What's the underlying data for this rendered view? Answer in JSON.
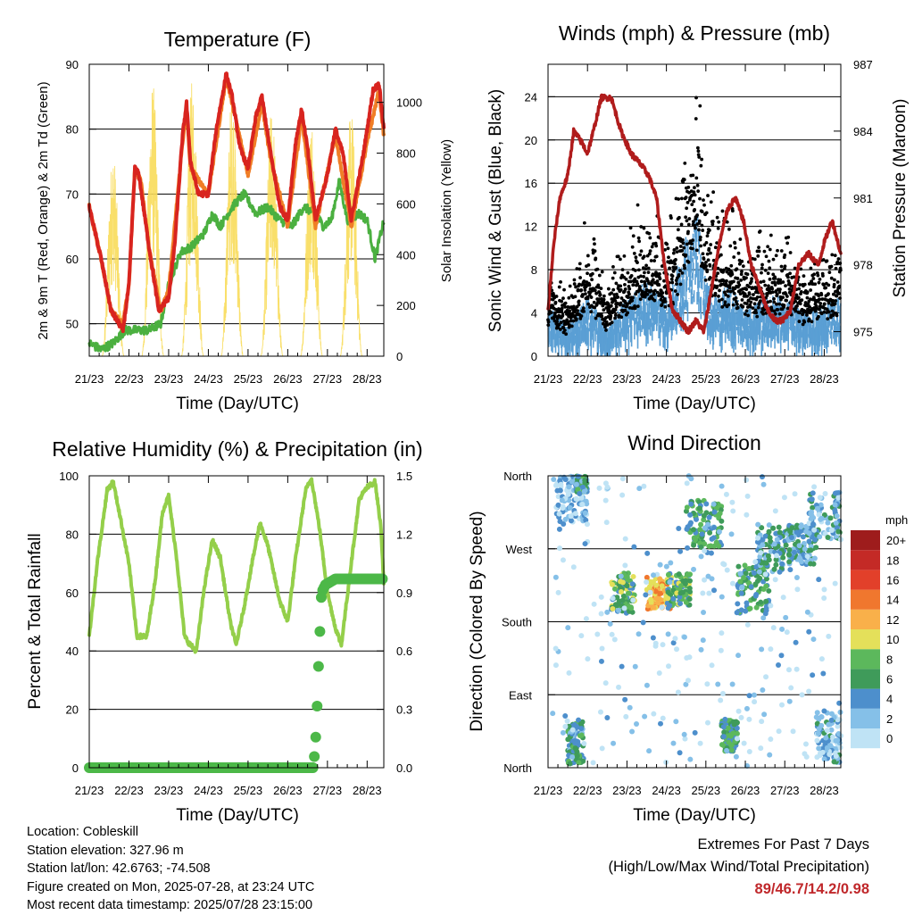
{
  "x_ticks": [
    "21/23",
    "22/23",
    "23/23",
    "24/23",
    "25/23",
    "26/23",
    "27/23",
    "28/23"
  ],
  "x_label": "Time (Day/UTC)",
  "colors": {
    "temp_red": "#d8241f",
    "temp_orange": "#f07e26",
    "dewpoint_green": "#4bb040",
    "solar_yellow": "#f8dc5a",
    "wind_blue": "#5a9fd4",
    "gust_black": "#000000",
    "pressure_maroon": "#b01c1c",
    "rh_green": "#94cf4a",
    "precip_green": "#4cb848"
  },
  "chart_data": [
    {
      "id": "temperature",
      "type": "line",
      "title": "Temperature (F)",
      "xlabel": "Time (Day/UTC)",
      "ylabel": "2m & 9m T (Red, Orange) & 2m Td (Green)",
      "y2label": "Solar Insolation (Yellow)",
      "ylim": [
        45,
        90
      ],
      "yticks": [
        50,
        60,
        70,
        80,
        90
      ],
      "y2lim": [
        0,
        1150
      ],
      "y2ticks": [
        0,
        200,
        400,
        600,
        800,
        1000
      ],
      "grid": true,
      "series": [
        {
          "key": "t2m",
          "values": [
            [
              0,
              68
            ],
            [
              0.3,
              60
            ],
            [
              0.55,
              52
            ],
            [
              0.85,
              49
            ],
            [
              1.0,
              56
            ],
            [
              1.1,
              68
            ],
            [
              1.15,
              74
            ],
            [
              1.25,
              73
            ],
            [
              1.5,
              62
            ],
            [
              1.75,
              52
            ],
            [
              2.0,
              54
            ],
            [
              2.15,
              62
            ],
            [
              2.35,
              79
            ],
            [
              2.45,
              84
            ],
            [
              2.55,
              75
            ],
            [
              2.75,
              70
            ],
            [
              3.0,
              70
            ],
            [
              3.2,
              80
            ],
            [
              3.45,
              88.5
            ],
            [
              3.6,
              85
            ],
            [
              3.8,
              77
            ],
            [
              4.0,
              74
            ],
            [
              4.2,
              82
            ],
            [
              4.35,
              85
            ],
            [
              4.55,
              77
            ],
            [
              4.8,
              68
            ],
            [
              5.0,
              66
            ],
            [
              5.2,
              78
            ],
            [
              5.35,
              83
            ],
            [
              5.5,
              77
            ],
            [
              5.7,
              66
            ],
            [
              6.0,
              73
            ],
            [
              6.2,
              80
            ],
            [
              6.4,
              76
            ],
            [
              6.6,
              66
            ],
            [
              6.9,
              76
            ],
            [
              7.15,
              86
            ],
            [
              7.3,
              87
            ],
            [
              7.42,
              80
            ]
          ]
        },
        {
          "key": "t9m",
          "values": [
            [
              0,
              68
            ],
            [
              0.3,
              60
            ],
            [
              0.55,
              52
            ],
            [
              0.85,
              50
            ],
            [
              1.0,
              56
            ],
            [
              1.15,
              74
            ],
            [
              1.3,
              72
            ],
            [
              1.5,
              62
            ],
            [
              1.8,
              52
            ],
            [
              2.0,
              55
            ],
            [
              2.35,
              78
            ],
            [
              2.45,
              83
            ],
            [
              2.55,
              74
            ],
            [
              3.0,
              70
            ],
            [
              3.45,
              88
            ],
            [
              3.6,
              84
            ],
            [
              4.0,
              73
            ],
            [
              4.35,
              84
            ],
            [
              4.55,
              76
            ],
            [
              5.0,
              65
            ],
            [
              5.35,
              82
            ],
            [
              5.7,
              65
            ],
            [
              6.2,
              79
            ],
            [
              6.6,
              65
            ],
            [
              7.0,
              78
            ],
            [
              7.3,
              86
            ],
            [
              7.42,
              79
            ]
          ]
        },
        {
          "key": "td2m",
          "values": [
            [
              0,
              47
            ],
            [
              0.3,
              46
            ],
            [
              0.6,
              47
            ],
            [
              0.9,
              49
            ],
            [
              1.2,
              49
            ],
            [
              1.5,
              49
            ],
            [
              1.8,
              50
            ],
            [
              2.0,
              56
            ],
            [
              2.3,
              61
            ],
            [
              2.6,
              62
            ],
            [
              2.9,
              64
            ],
            [
              3.1,
              67
            ],
            [
              3.3,
              65
            ],
            [
              3.6,
              68
            ],
            [
              3.9,
              70
            ],
            [
              4.2,
              67
            ],
            [
              4.5,
              68
            ],
            [
              4.8,
              66
            ],
            [
              5.1,
              65
            ],
            [
              5.4,
              68
            ],
            [
              5.7,
              67
            ],
            [
              5.9,
              65
            ],
            [
              6.1,
              66
            ],
            [
              6.3,
              72
            ],
            [
              6.5,
              66
            ],
            [
              6.8,
              67
            ],
            [
              7.0,
              66
            ],
            [
              7.2,
              60
            ],
            [
              7.42,
              66
            ]
          ]
        },
        {
          "key": "solar",
          "peaks": [
            [
              0.6,
              820
            ],
            [
              1.6,
              1090
            ],
            [
              2.6,
              1100
            ],
            [
              3.6,
              1060
            ],
            [
              4.6,
              990
            ],
            [
              5.6,
              960
            ],
            [
              6.6,
              980
            ]
          ]
        }
      ]
    },
    {
      "id": "winds",
      "type": "line",
      "title": "Winds (mph) & Pressure (mb)",
      "xlabel": "Time (Day/UTC)",
      "ylabel": "Sonic Wind & Gust (Blue, Black)",
      "y2label": "Station Pressure (Maroon)",
      "ylim": [
        0,
        27
      ],
      "yticks": [
        0,
        4,
        8,
        12,
        16,
        20,
        24
      ],
      "y2lim": [
        973.9,
        987
      ],
      "y2ticks": [
        975,
        978,
        981,
        984,
        987
      ],
      "grid": true,
      "series": [
        {
          "key": "pressure",
          "values": [
            [
              0,
              976
            ],
            [
              0.15,
              979
            ],
            [
              0.3,
              981
            ],
            [
              0.5,
              982
            ],
            [
              0.65,
              984
            ],
            [
              0.85,
              983.5
            ],
            [
              1.0,
              983
            ],
            [
              1.15,
              984
            ],
            [
              1.35,
              985.5
            ],
            [
              1.6,
              985.5
            ],
            [
              1.85,
              984
            ],
            [
              2.1,
              983
            ],
            [
              2.35,
              982.5
            ],
            [
              2.55,
              982
            ],
            [
              2.75,
              981
            ],
            [
              2.95,
              978
            ],
            [
              3.15,
              976
            ],
            [
              3.35,
              975.5
            ],
            [
              3.55,
              975
            ],
            [
              3.75,
              975.5
            ],
            [
              3.95,
              975
            ],
            [
              4.15,
              977
            ],
            [
              4.35,
              979
            ],
            [
              4.55,
              980.5
            ],
            [
              4.75,
              981
            ],
            [
              4.95,
              980
            ],
            [
              5.15,
              978
            ],
            [
              5.35,
              977
            ],
            [
              5.55,
              976
            ],
            [
              5.75,
              975.5
            ],
            [
              5.95,
              975.5
            ],
            [
              6.15,
              976
            ],
            [
              6.35,
              978
            ],
            [
              6.6,
              978.5
            ],
            [
              6.85,
              978
            ],
            [
              7.0,
              979
            ],
            [
              7.2,
              980
            ],
            [
              7.42,
              978.5
            ]
          ]
        },
        {
          "key": "wind_mean",
          "values": [
            [
              0,
              3.5
            ],
            [
              0.5,
              2
            ],
            [
              1,
              4
            ],
            [
              1.5,
              2
            ],
            [
              2,
              4
            ],
            [
              2.5,
              5
            ],
            [
              3,
              4
            ],
            [
              3.5,
              8
            ],
            [
              3.8,
              10
            ],
            [
              4,
              5
            ],
            [
              4.3,
              4
            ],
            [
              4.6,
              5
            ],
            [
              5,
              3
            ],
            [
              5.5,
              4
            ],
            [
              6,
              4
            ],
            [
              6.5,
              3
            ],
            [
              7,
              3.5
            ],
            [
              7.42,
              4
            ]
          ]
        },
        {
          "key": "gust",
          "values": [
            [
              0,
              6
            ],
            [
              0.5,
              4
            ],
            [
              1,
              9
            ],
            [
              1.5,
              5
            ],
            [
              2,
              8
            ],
            [
              2.5,
              10
            ],
            [
              3,
              8
            ],
            [
              3.5,
              15
            ],
            [
              3.8,
              17
            ],
            [
              4,
              12
            ],
            [
              4.3,
              9
            ],
            [
              4.6,
              10
            ],
            [
              5,
              7
            ],
            [
              5.5,
              8
            ],
            [
              6,
              8
            ],
            [
              6.5,
              6
            ],
            [
              7,
              7
            ],
            [
              7.42,
              8
            ]
          ]
        }
      ]
    },
    {
      "id": "humidity",
      "type": "line",
      "title": "Relative Humidity (%) & Precipitation (in)",
      "xlabel": "Time (Day/UTC)",
      "ylabel": "Percent & Total Rainfall",
      "ylim": [
        0,
        100
      ],
      "yticks": [
        0,
        20,
        40,
        60,
        80,
        100
      ],
      "y2lim": [
        0,
        1.5
      ],
      "y2ticks": [
        "0.0",
        "0.3",
        "0.6",
        "0.9",
        "1.2",
        "1.5"
      ],
      "grid": true,
      "series": [
        {
          "key": "rh",
          "values": [
            [
              0,
              45
            ],
            [
              0.2,
              70
            ],
            [
              0.45,
              95
            ],
            [
              0.6,
              98
            ],
            [
              0.75,
              88
            ],
            [
              1.0,
              70
            ],
            [
              1.2,
              45
            ],
            [
              1.45,
              45
            ],
            [
              1.65,
              63
            ],
            [
              1.85,
              88
            ],
            [
              2.0,
              93
            ],
            [
              2.2,
              72
            ],
            [
              2.4,
              45
            ],
            [
              2.55,
              42
            ],
            [
              2.7,
              40
            ],
            [
              2.9,
              62
            ],
            [
              3.1,
              78
            ],
            [
              3.3,
              72
            ],
            [
              3.55,
              50
            ],
            [
              3.7,
              42
            ],
            [
              3.9,
              55
            ],
            [
              4.1,
              70
            ],
            [
              4.3,
              84
            ],
            [
              4.5,
              76
            ],
            [
              4.8,
              57
            ],
            [
              5.0,
              50
            ],
            [
              5.2,
              72
            ],
            [
              5.45,
              95
            ],
            [
              5.6,
              99
            ],
            [
              5.8,
              82
            ],
            [
              6.0,
              60
            ],
            [
              6.2,
              48
            ],
            [
              6.35,
              42
            ],
            [
              6.6,
              70
            ],
            [
              6.8,
              92
            ],
            [
              7.0,
              96
            ],
            [
              7.2,
              98
            ],
            [
              7.35,
              82
            ],
            [
              7.42,
              63
            ]
          ]
        },
        {
          "key": "precip",
          "values": [
            [
              0,
              0
            ],
            [
              5.65,
              0
            ],
            [
              5.72,
              0.2
            ],
            [
              5.78,
              0.55
            ],
            [
              5.85,
              0.9
            ],
            [
              5.95,
              0.94
            ],
            [
              6.2,
              0.97
            ],
            [
              7.42,
              0.97
            ]
          ]
        }
      ]
    },
    {
      "id": "wind_direction",
      "type": "scatter",
      "title": "Wind Direction",
      "xlabel": "Time (Day/UTC)",
      "ylabel": "Direction (Colored By Speed)",
      "yticks": [
        "North",
        "East",
        "South",
        "West",
        "North"
      ],
      "grid": true,
      "colorbar": {
        "unit": "mph",
        "labels": [
          "0",
          "2",
          "4",
          "6",
          "8",
          "10",
          "12",
          "14",
          "16",
          "18",
          "20+"
        ],
        "colors": [
          "#bfe3f5",
          "#85c0e8",
          "#4d8fcc",
          "#3f9b5a",
          "#5cb85c",
          "#e4e05a",
          "#f9b04a",
          "#f0772e",
          "#e2402a",
          "#c42a26",
          "#9e1c1c"
        ]
      }
    }
  ],
  "info": {
    "location": "Location: Cobleskill",
    "elevation": "Station elevation: 327.96 m",
    "latlon": "Station lat/lon: 42.6763; -74.508",
    "created": "Figure created on Mon, 2025-07-28, at 23:24 UTC",
    "recent": "Most recent data timestamp: 2025/07/28 23:15:00"
  },
  "extremes": {
    "line1": "Extremes For Past 7 Days",
    "line2": "(High/Low/Max Wind/Total Precipitation)",
    "values": "89/46.7/14.2/0.98"
  }
}
